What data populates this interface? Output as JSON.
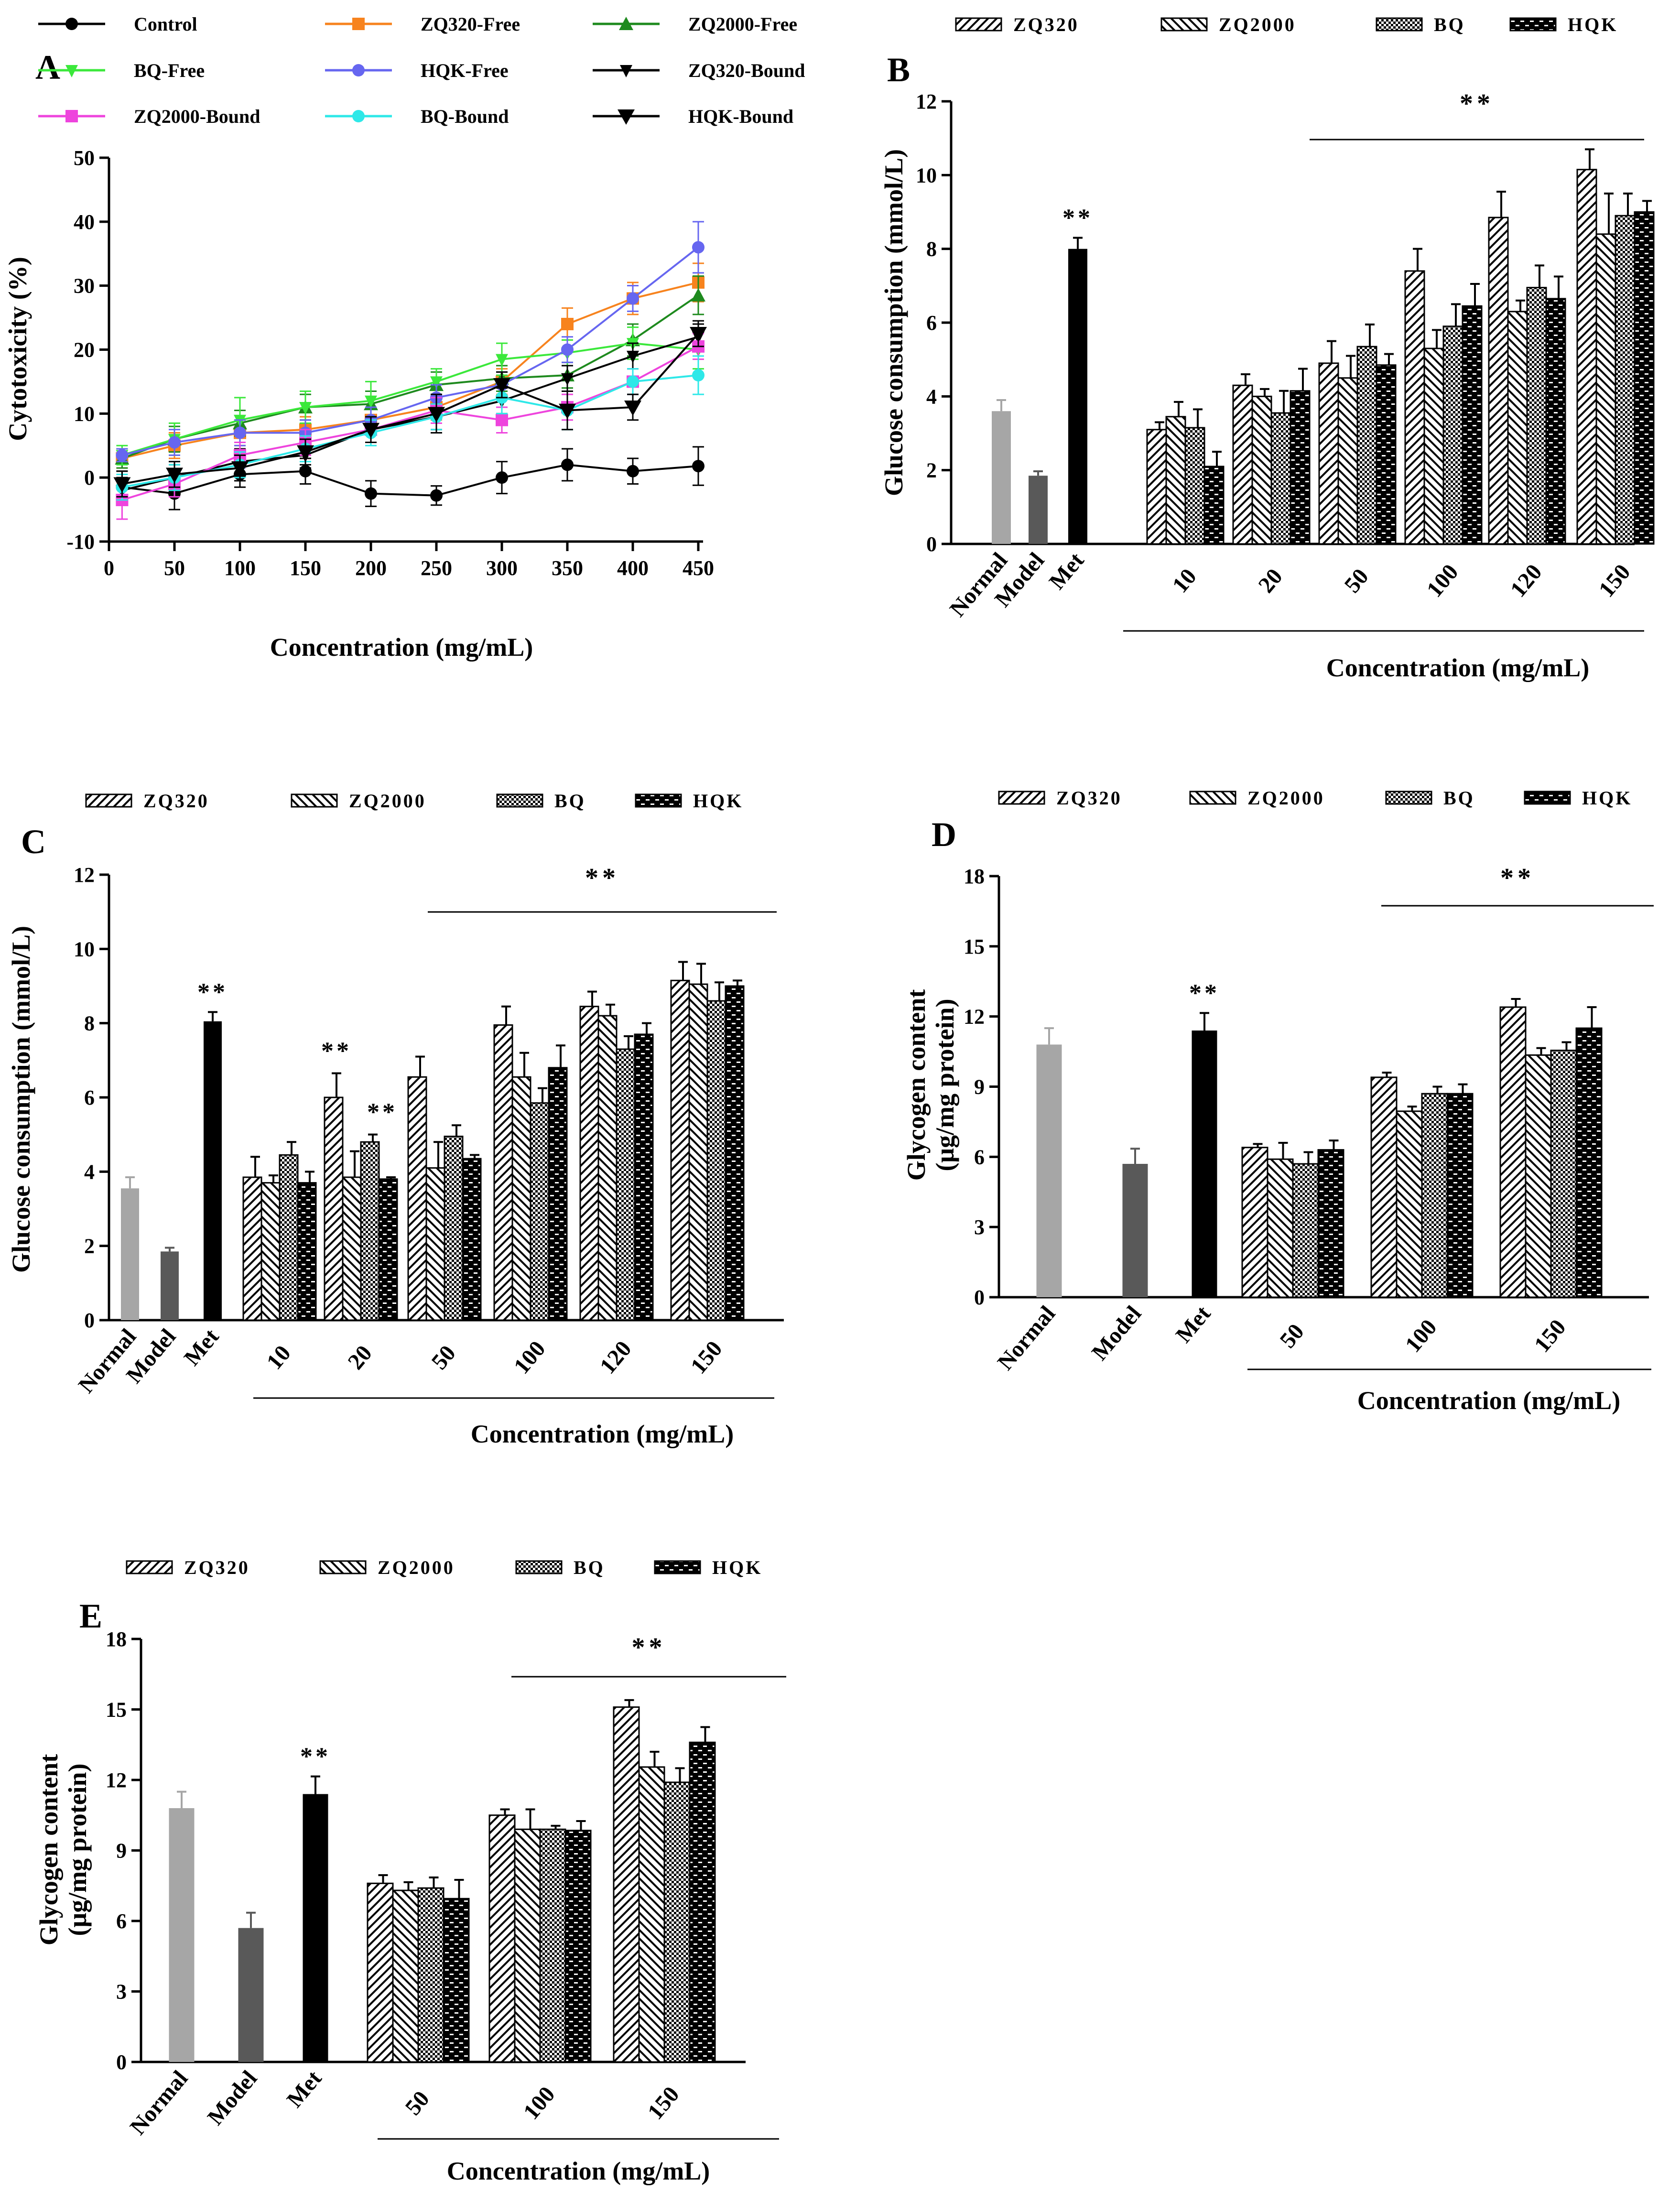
{
  "figure_title": "Cytotoxicity, glucose consumption and glycogen content of ZQ320, ZQ2000, BQ and HQK extracts",
  "colors": {
    "Control": "#000000",
    "ZQ320-Free": "#f7831e",
    "ZQ2000-Free": "#1e8a1e",
    "BQ-Free": "#3be83b",
    "HQK-Free": "#6666f0",
    "ZQ320-Bound": "#000000",
    "ZQ2000-Bound": "#ee44dd",
    "BQ-Bound": "#2ee8e8",
    "HQK-Bound": "#000000",
    "Normal": "#a6a6a6",
    "Model": "#595959",
    "Met": "#000000"
  },
  "chart_data": [
    {
      "panel": "A",
      "type": "line",
      "xlabel": "Concentration (mg/mL)",
      "ylabel": "Cytotoxicity (%)",
      "xlim": [
        0,
        450
      ],
      "ylim": [
        -10,
        50
      ],
      "xticks": [
        0,
        50,
        100,
        150,
        200,
        250,
        300,
        350,
        400,
        450
      ],
      "yticks": [
        -10,
        0,
        10,
        20,
        30,
        40,
        50
      ],
      "x": [
        10,
        50,
        100,
        150,
        200,
        250,
        300,
        350,
        400,
        450
      ],
      "series": [
        {
          "name": "Control",
          "marker": "circle",
          "values": [
            -1.5,
            -2.5,
            0.5,
            1,
            -2.5,
            -2.8,
            0,
            2,
            1,
            1.8
          ],
          "errors": [
            2.5,
            2.5,
            2,
            2,
            2,
            1.5,
            2.5,
            2.5,
            2,
            3
          ]
        },
        {
          "name": "ZQ320-Free",
          "marker": "square",
          "values": [
            3,
            5,
            7,
            7.5,
            9,
            11,
            15,
            24,
            28,
            30.5
          ],
          "errors": [
            1.5,
            2,
            2,
            2,
            2,
            2,
            2,
            2.5,
            2.5,
            3
          ]
        },
        {
          "name": "ZQ2000-Free",
          "marker": "triangle-up",
          "values": [
            3,
            6,
            8.5,
            11,
            11.5,
            14.5,
            15.5,
            16,
            21.5,
            28.5
          ],
          "errors": [
            1.5,
            2,
            2,
            2,
            2,
            2,
            2,
            2,
            2.5,
            3
          ]
        },
        {
          "name": "BQ-Free",
          "marker": "triangle-down",
          "values": [
            3.5,
            6,
            9,
            11,
            12,
            15,
            18.5,
            19.5,
            21,
            20
          ],
          "errors": [
            1.5,
            2.5,
            3.5,
            2.5,
            3,
            2,
            2.5,
            2,
            2.5,
            3
          ]
        },
        {
          "name": "HQK-Free",
          "marker": "circle",
          "values": [
            3.5,
            5.5,
            7,
            7,
            9,
            12.5,
            14.5,
            20,
            28,
            36
          ],
          "errors": [
            1,
            2,
            2,
            2,
            2,
            2,
            2,
            2,
            2,
            4
          ]
        },
        {
          "name": "ZQ320-Bound",
          "marker": "triangle-down",
          "values": [
            -2,
            0,
            2.5,
            3.5,
            7.5,
            9.5,
            12,
            15.5,
            19,
            22
          ],
          "errors": [
            2,
            2,
            2,
            2,
            2,
            2,
            2,
            2,
            2,
            2
          ]
        },
        {
          "name": "ZQ2000-Bound",
          "marker": "square",
          "values": [
            -3.5,
            -1,
            3.5,
            5.5,
            7.5,
            10.5,
            9,
            11,
            15,
            20.5
          ],
          "errors": [
            3,
            2,
            2,
            2,
            2,
            2,
            2,
            2,
            2,
            2
          ]
        },
        {
          "name": "BQ-Bound",
          "marker": "circle",
          "values": [
            -1.5,
            0,
            2,
            4.5,
            7,
            9.5,
            12.5,
            10.5,
            15,
            16
          ],
          "errors": [
            2,
            2,
            2,
            2,
            2,
            2,
            2.5,
            3,
            2,
            3
          ]
        },
        {
          "name": "HQK-Bound",
          "marker": "triangle-down-large",
          "values": [
            -1,
            0.5,
            1.5,
            4,
            7.5,
            10,
            14.5,
            10.5,
            11,
            22.5
          ],
          "errors": [
            2,
            2,
            2,
            2,
            2,
            3,
            2,
            3,
            2,
            2
          ]
        }
      ]
    },
    {
      "panel": "B",
      "type": "bar",
      "xlabel": "Concentration (mg/mL)",
      "ylabel": "Glucose consumption (mmol/L)",
      "ylim": [
        0,
        12
      ],
      "yticks": [
        0,
        2,
        4,
        6,
        8,
        10,
        12
      ],
      "legend": [
        "ZQ320",
        "ZQ2000",
        "BQ",
        "HQK"
      ],
      "controls": [
        {
          "label": "Normal",
          "value": 3.6,
          "error": 0.3
        },
        {
          "label": "Model",
          "value": 1.85,
          "error": 0.12
        },
        {
          "label": "Met",
          "value": 8.0,
          "error": 0.3,
          "annotation": "**"
        }
      ],
      "categories": [
        "10",
        "20",
        "50",
        "100",
        "120",
        "150"
      ],
      "series": [
        {
          "name": "ZQ320",
          "values": [
            3.1,
            4.3,
            4.9,
            7.4,
            8.85,
            10.15
          ],
          "errors": [
            0.2,
            0.3,
            0.6,
            0.6,
            0.7,
            0.55
          ]
        },
        {
          "name": "ZQ2000",
          "values": [
            3.45,
            4.0,
            4.5,
            5.3,
            6.3,
            8.4
          ],
          "errors": [
            0.4,
            0.2,
            0.6,
            0.5,
            0.3,
            1.1
          ]
        },
        {
          "name": "BQ",
          "values": [
            3.15,
            3.55,
            5.35,
            5.9,
            6.95,
            8.9
          ],
          "errors": [
            0.5,
            0.6,
            0.6,
            0.6,
            0.6,
            0.6
          ]
        },
        {
          "name": "HQK",
          "values": [
            2.1,
            4.15,
            4.85,
            6.45,
            6.65,
            9.0
          ],
          "errors": [
            0.4,
            0.6,
            0.3,
            0.6,
            0.6,
            0.3
          ]
        }
      ],
      "significance": {
        "label": "**",
        "from": "50",
        "to": "150"
      }
    },
    {
      "panel": "C",
      "type": "bar",
      "xlabel": "Concentration (mg/mL)",
      "ylabel": "Glucose consumption (mmol/L)",
      "ylim": [
        0,
        12
      ],
      "yticks": [
        0,
        2,
        4,
        6,
        8,
        10,
        12
      ],
      "legend": [
        "ZQ320",
        "ZQ2000",
        "BQ",
        "HQK"
      ],
      "controls": [
        {
          "label": "Normal",
          "value": 3.55,
          "error": 0.3
        },
        {
          "label": "Model",
          "value": 1.85,
          "error": 0.1
        },
        {
          "label": "Met",
          "value": 8.05,
          "error": 0.25,
          "annotation": "**"
        }
      ],
      "categories": [
        "10",
        "20",
        "50",
        "100",
        "120",
        "150"
      ],
      "series": [
        {
          "name": "ZQ320",
          "values": [
            3.85,
            6.0,
            6.55,
            7.95,
            8.45,
            9.15
          ],
          "errors": [
            0.55,
            0.65,
            0.55,
            0.5,
            0.4,
            0.5
          ]
        },
        {
          "name": "ZQ2000",
          "values": [
            3.7,
            3.85,
            4.1,
            6.55,
            8.2,
            9.05
          ],
          "errors": [
            0.2,
            0.7,
            0.7,
            0.65,
            0.3,
            0.55
          ]
        },
        {
          "name": "BQ",
          "values": [
            4.45,
            4.8,
            4.95,
            5.85,
            7.3,
            8.6
          ],
          "errors": [
            0.35,
            0.2,
            0.3,
            0.4,
            0.35,
            0.5
          ]
        },
        {
          "name": "HQK",
          "values": [
            3.7,
            3.8,
            4.35,
            6.8,
            7.7,
            9.0
          ],
          "errors": [
            0.3,
            0.05,
            0.1,
            0.6,
            0.3,
            0.15
          ]
        }
      ],
      "point_annotations": [
        {
          "category": "20",
          "series": "ZQ320",
          "label": "**"
        },
        {
          "category": "20",
          "series": "BQ",
          "label": "**"
        }
      ],
      "significance": {
        "label": "**",
        "from": "50",
        "to": "150"
      }
    },
    {
      "panel": "D",
      "type": "bar",
      "xlabel": "Concentration (mg/mL)",
      "ylabel_line1": "Glycogen content",
      "ylabel_line2": "(μg/mg protein)",
      "ylim": [
        0,
        18
      ],
      "yticks": [
        0,
        3,
        6,
        9,
        12,
        15,
        18
      ],
      "legend": [
        "ZQ320",
        "ZQ2000",
        "BQ",
        "HQK"
      ],
      "controls": [
        {
          "label": "Normal",
          "value": 10.8,
          "error": 0.7
        },
        {
          "label": "Model",
          "value": 5.7,
          "error": 0.65
        },
        {
          "label": "Met",
          "value": 11.4,
          "error": 0.75,
          "annotation": "**"
        }
      ],
      "categories": [
        "50",
        "100",
        "150"
      ],
      "series": [
        {
          "name": "ZQ320",
          "values": [
            6.4,
            9.4,
            12.4
          ],
          "errors": [
            0.15,
            0.2,
            0.35
          ]
        },
        {
          "name": "ZQ2000",
          "values": [
            5.9,
            7.95,
            10.35
          ],
          "errors": [
            0.7,
            0.2,
            0.3
          ]
        },
        {
          "name": "BQ",
          "values": [
            5.7,
            8.7,
            10.55
          ],
          "errors": [
            0.5,
            0.3,
            0.35
          ]
        },
        {
          "name": "HQK",
          "values": [
            6.3,
            8.7,
            11.5
          ],
          "errors": [
            0.4,
            0.4,
            0.9
          ]
        }
      ],
      "significance": {
        "label": "**",
        "from": "100",
        "to": "150"
      }
    },
    {
      "panel": "E",
      "type": "bar",
      "xlabel": "Concentration (mg/mL)",
      "ylabel_line1": "Glycogen content",
      "ylabel_line2": "(μg/mg protein)",
      "ylim": [
        0,
        18
      ],
      "yticks": [
        0,
        3,
        6,
        9,
        12,
        15,
        18
      ],
      "legend": [
        "ZQ320",
        "ZQ2000",
        "BQ",
        "HQK"
      ],
      "controls": [
        {
          "label": "Normal",
          "value": 10.8,
          "error": 0.7
        },
        {
          "label": "Model",
          "value": 5.7,
          "error": 0.65
        },
        {
          "label": "Met",
          "value": 11.4,
          "error": 0.75,
          "annotation": "**"
        }
      ],
      "categories": [
        "50",
        "100",
        "150"
      ],
      "series": [
        {
          "name": "ZQ320",
          "values": [
            7.6,
            10.5,
            15.1
          ],
          "errors": [
            0.35,
            0.25,
            0.3
          ]
        },
        {
          "name": "ZQ2000",
          "values": [
            7.3,
            9.9,
            12.55
          ],
          "errors": [
            0.35,
            0.85,
            0.65
          ]
        },
        {
          "name": "BQ",
          "values": [
            7.4,
            9.9,
            11.9
          ],
          "errors": [
            0.45,
            0.15,
            0.6
          ]
        },
        {
          "name": "HQK",
          "values": [
            6.95,
            9.85,
            13.6
          ],
          "errors": [
            0.8,
            0.4,
            0.65
          ]
        }
      ],
      "significance": {
        "label": "**",
        "from": "100",
        "to": "150"
      }
    }
  ]
}
